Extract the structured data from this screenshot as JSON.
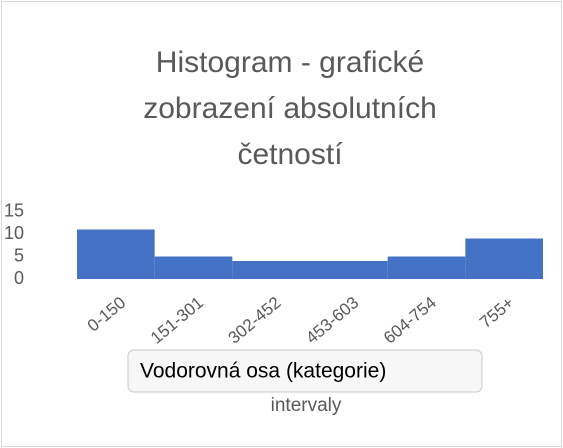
{
  "chart_data": {
    "type": "bar",
    "title_lines": [
      "Histogram - grafické",
      "zobrazení absolutních",
      "četností"
    ],
    "categories": [
      "0-150",
      "151-301",
      "302-452",
      "453-603",
      "604-754",
      "755+"
    ],
    "values": [
      11,
      5,
      4,
      4,
      5,
      9
    ],
    "color": "#4472c4",
    "ylim": [
      0,
      15
    ],
    "yticks": [
      0,
      5,
      10,
      15
    ],
    "grid": false,
    "x_label": "intervaly",
    "tooltip": "Vodorovná osa (kategorie)"
  }
}
